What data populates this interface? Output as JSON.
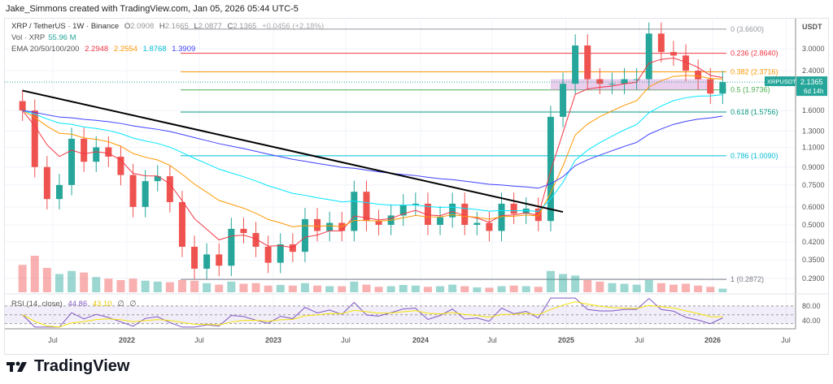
{
  "header": {
    "attribution": "Jake_Simmons created with TradingView.com, Jan 05, 2026 05:44 UTC-5"
  },
  "legend": {
    "symbol": "XRP / TetherUS · 1W · Binance",
    "o_label": "O",
    "o": "2.0908",
    "h_label": "H",
    "h": "2.1665",
    "l_label": "L",
    "l": "2.0877",
    "c_label": "C",
    "c": "2.1365",
    "change": "+0.0456 (+2.18%)",
    "vol_label": "Vol · XRP",
    "vol": "55.96 M",
    "ema_label": "EMA 20/50/100/200",
    "ema20": "2.2948",
    "ema50": "2.2554",
    "ema100": "1.8768",
    "ema200": "1.3909",
    "rsi_label": "RSI (14, close)",
    "rsi": "44.86",
    "rsi_ma": "43.10",
    "rsi_extra1": "∅",
    "rsi_extra2": "∅"
  },
  "price_axis": {
    "currency": "USDT",
    "ticks": [
      "3.0000",
      "2.4000",
      "1.6000",
      "1.3000",
      "1.1000",
      "0.9000",
      "0.7500",
      "0.6000",
      "0.5000",
      "0.4200",
      "0.3500",
      "0.2900"
    ],
    "rsi_ticks": [
      "80.00",
      "40.00"
    ]
  },
  "last_price": {
    "symbol": "XRPUSDT",
    "price": "2.1365",
    "countdown": "6d 14h"
  },
  "time_axis": [
    "Jul",
    "2022",
    "Jul",
    "2023",
    "Jul",
    "2024",
    "Jul",
    "2025",
    "Jul",
    "2026",
    "Jul"
  ],
  "fib_levels": [
    {
      "label": "0 (3.6600)",
      "price": 3.66,
      "color": "#9598a1"
    },
    {
      "label": "0.236 (2.8640)",
      "price": 2.864,
      "color": "#f23645"
    },
    {
      "label": "0.382 (2.3716)",
      "price": 2.3716,
      "color": "#ff9800"
    },
    {
      "label": "0.5 (1.9736)",
      "price": 1.9736,
      "color": "#4caf50"
    },
    {
      "label": "0.618 (1.5756)",
      "price": 1.5756,
      "color": "#089981"
    },
    {
      "label": "0.786 (1.0090)",
      "price": 1.009,
      "color": "#00bcd4"
    },
    {
      "label": "1 (0.2872)",
      "price": 0.2872,
      "color": "#787b86"
    }
  ],
  "colors": {
    "up": "#26a69a",
    "down": "#ef5350",
    "ema20": "#f23645",
    "ema50": "#ff9800",
    "ema100": "#00e5ff",
    "ema200": "#3f3fff",
    "rsi": "#7e57c2",
    "rsi_ma": "#f7e300",
    "trendline": "#000000"
  },
  "branding": {
    "logo_text": "TradingView"
  },
  "chart_data": {
    "type": "candlestick",
    "scale": "log",
    "grid": true,
    "ylim": [
      0.27,
      3.9
    ],
    "dates": [
      "2021-04",
      "2021-05",
      "2021-06",
      "2021-07",
      "2021-08",
      "2021-09",
      "2021-10",
      "2021-11",
      "2021-12",
      "2022-01",
      "2022-02",
      "2022-03",
      "2022-04",
      "2022-05",
      "2022-06",
      "2022-07",
      "2022-08",
      "2022-09",
      "2022-10",
      "2022-11",
      "2022-12",
      "2023-01",
      "2023-02",
      "2023-03",
      "2023-04",
      "2023-05",
      "2023-06",
      "2023-07",
      "2023-08",
      "2023-09",
      "2023-10",
      "2023-11",
      "2023-12",
      "2024-01",
      "2024-02",
      "2024-03",
      "2024-04",
      "2024-05",
      "2024-06",
      "2024-07",
      "2024-08",
      "2024-09",
      "2024-10",
      "2024-11",
      "2024-12",
      "2025-01",
      "2025-02",
      "2025-03",
      "2025-04",
      "2025-05",
      "2025-06",
      "2025-07",
      "2025-08",
      "2025-09",
      "2025-10",
      "2025-11",
      "2025-12",
      "2026-01"
    ],
    "close": [
      1.6,
      0.9,
      0.65,
      0.75,
      1.2,
      0.95,
      1.1,
      1.0,
      0.83,
      0.6,
      0.78,
      0.82,
      0.63,
      0.4,
      0.32,
      0.37,
      0.33,
      0.48,
      0.46,
      0.4,
      0.34,
      0.41,
      0.38,
      0.53,
      0.47,
      0.51,
      0.47,
      0.7,
      0.52,
      0.5,
      0.55,
      0.61,
      0.62,
      0.5,
      0.54,
      0.62,
      0.5,
      0.51,
      0.47,
      0.62,
      0.56,
      0.59,
      0.52,
      1.5,
      2.1,
      3.1,
      2.2,
      2.1,
      2.1,
      2.2,
      2.2,
      3.5,
      2.9,
      2.8,
      2.4,
      2.2,
      1.9,
      2.1365
    ],
    "volume": [
      90,
      120,
      80,
      60,
      70,
      65,
      50,
      45,
      40,
      45,
      38,
      35,
      33,
      40,
      38,
      30,
      25,
      35,
      28,
      30,
      22,
      24,
      22,
      30,
      22,
      20,
      20,
      35,
      25,
      18,
      20,
      24,
      22,
      18,
      20,
      25,
      20,
      16,
      15,
      20,
      22,
      20,
      18,
      70,
      60,
      55,
      40,
      35,
      30,
      28,
      25,
      40,
      30,
      25,
      28,
      22,
      18,
      12
    ],
    "trendline": {
      "from": {
        "date": "2021-04",
        "price": 1.96
      },
      "to": {
        "date": "2024-12",
        "price": 0.57
      }
    }
  }
}
